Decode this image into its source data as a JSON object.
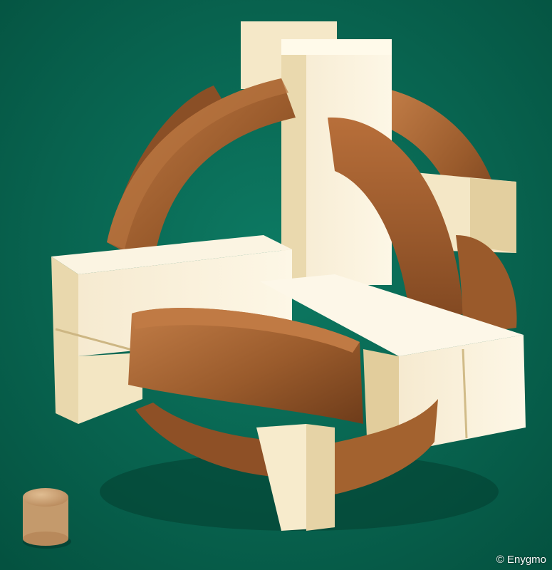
{
  "photo": {
    "credit": "© Enygmo"
  },
  "colors": {
    "felt": "#0a6b57",
    "felt_dark": "#04513f",
    "maple_light": "#fbf3dd",
    "maple_mid": "#f1e2bd",
    "maple_shade": "#d9c493",
    "walnut_light": "#c07a44",
    "walnut_mid": "#9a5b2c",
    "walnut_dark": "#6e3c1a",
    "peg": "#cfa67a"
  }
}
